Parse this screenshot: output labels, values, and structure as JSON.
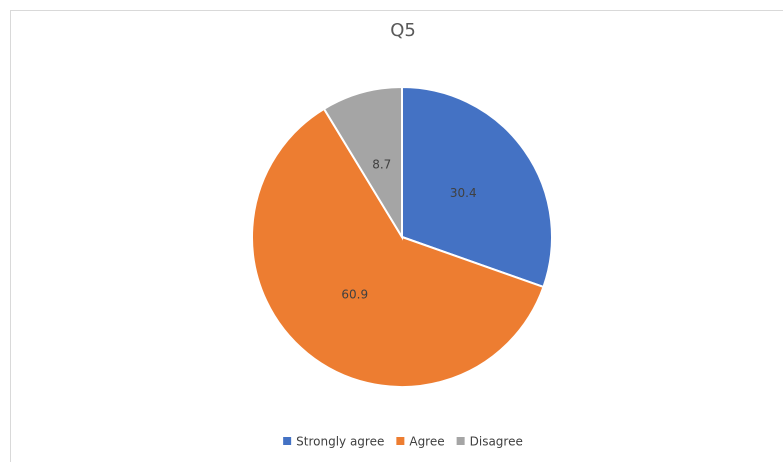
{
  "chart_data": {
    "type": "pie",
    "title": "Q5",
    "categories": [
      "Strongly agree",
      "Agree",
      "Disagree"
    ],
    "values": [
      30.4,
      60.9,
      8.7
    ],
    "colors": [
      "#4472c4",
      "#ed7d31",
      "#a5a5a5"
    ],
    "legend": "bottom"
  }
}
